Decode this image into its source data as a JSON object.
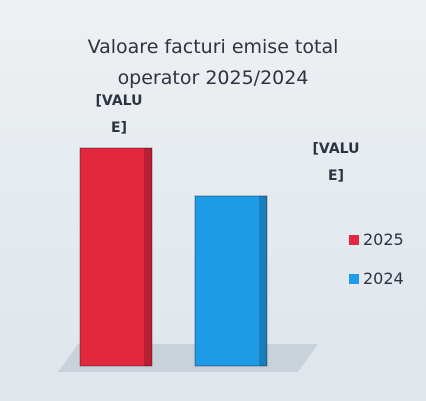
{
  "chart_data": {
    "type": "bar",
    "title": "Valoare facturi emise total operator 2025/2024",
    "series": [
      {
        "name": "2025",
        "color": "#e2283f",
        "values": [
          100
        ],
        "value_labels": [
          "[VALUE]"
        ]
      },
      {
        "name": "2024",
        "color": "#1e9be6",
        "values": [
          78
        ],
        "value_labels": [
          "[VALUE]"
        ]
      }
    ],
    "legend": "right"
  }
}
